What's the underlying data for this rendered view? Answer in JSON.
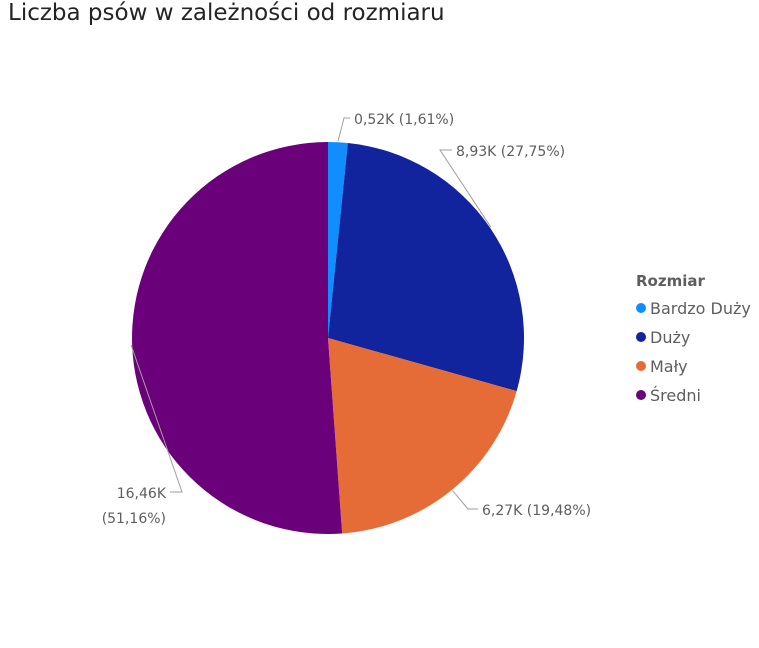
{
  "chart_data": {
    "type": "pie",
    "title": "Liczba psów w zależności od rozmiaru",
    "legend_title": "Rozmiar",
    "legend_position": "right",
    "categories": [
      "Bardzo Duży",
      "Duży",
      "Mały",
      "Średni"
    ],
    "values": [
      0.52,
      8.93,
      6.27,
      16.46
    ],
    "percentages": [
      1.61,
      27.75,
      19.48,
      51.16
    ],
    "colors": [
      "#118DFF",
      "#12239E",
      "#E66C37",
      "#6B007B"
    ],
    "labels": [
      [
        "0,52K (1,61%)"
      ],
      [
        "8,93K (27,75%)"
      ],
      [
        "6,27K (19,48%)"
      ],
      [
        "16,46K",
        "(51,16%)"
      ]
    ]
  }
}
